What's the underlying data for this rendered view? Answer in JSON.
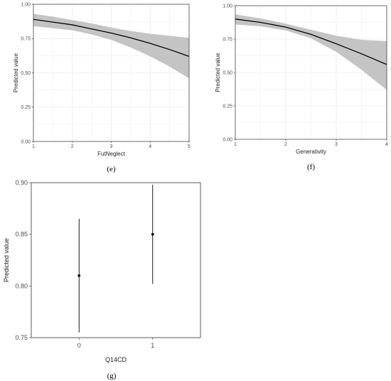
{
  "colors": {
    "line": "#000000",
    "ribbon": "#c4c4c4",
    "grid": "#ebebeb",
    "frame": "#333333",
    "g_zero_tick": "#2f5f8a"
  },
  "chart_data": [
    {
      "panel": "(e)",
      "type": "line",
      "xlabel": "FutNeglect",
      "ylabel": "Predicted value",
      "xlim": [
        1,
        5
      ],
      "ylim": [
        0,
        1
      ],
      "x_ticks": [
        "1",
        "2",
        "3",
        "4",
        "5"
      ],
      "y_ticks": [
        "0.00",
        "0.25",
        "0.50",
        "0.75",
        "1.00"
      ],
      "grid": true,
      "series": [
        {
          "x": [
            1,
            1.5,
            2,
            2.5,
            3,
            3.5,
            4,
            4.5,
            5
          ],
          "y": [
            0.89,
            0.87,
            0.85,
            0.82,
            0.79,
            0.755,
            0.715,
            0.67,
            0.62
          ],
          "lower": [
            0.84,
            0.825,
            0.81,
            0.78,
            0.74,
            0.685,
            0.62,
            0.545,
            0.46
          ],
          "upper": [
            0.93,
            0.91,
            0.885,
            0.86,
            0.83,
            0.805,
            0.785,
            0.77,
            0.755
          ]
        }
      ]
    },
    {
      "panel": "(f)",
      "type": "line",
      "xlabel": "Generativity",
      "ylabel": "Predicted value",
      "xlim": [
        1,
        4
      ],
      "ylim": [
        0,
        1
      ],
      "x_ticks": [
        "1",
        "2",
        "3",
        "4"
      ],
      "y_ticks": [
        "0.00",
        "0.25",
        "0.50",
        "0.75",
        "1.00"
      ],
      "grid": true,
      "series": [
        {
          "x": [
            1,
            1.5,
            2,
            2.5,
            3,
            3.5,
            4
          ],
          "y": [
            0.9,
            0.875,
            0.84,
            0.785,
            0.715,
            0.64,
            0.56
          ],
          "lower": [
            0.86,
            0.845,
            0.815,
            0.755,
            0.655,
            0.52,
            0.37
          ],
          "upper": [
            0.935,
            0.905,
            0.865,
            0.82,
            0.775,
            0.745,
            0.735
          ]
        }
      ]
    },
    {
      "panel": "(g)",
      "type": "scatter",
      "xlabel": "Q14CD",
      "ylabel": "Predicted value",
      "categories": [
        "0",
        "1"
      ],
      "ylim": [
        0.75,
        0.9
      ],
      "y_ticks": [
        "0.75",
        "0.80",
        "0.85",
        "0.90"
      ],
      "grid": false,
      "points": [
        {
          "x": "0",
          "y": 0.81,
          "lower": 0.755,
          "upper": 0.865
        },
        {
          "x": "1",
          "y": 0.85,
          "lower": 0.802,
          "upper": 0.898
        }
      ]
    }
  ]
}
